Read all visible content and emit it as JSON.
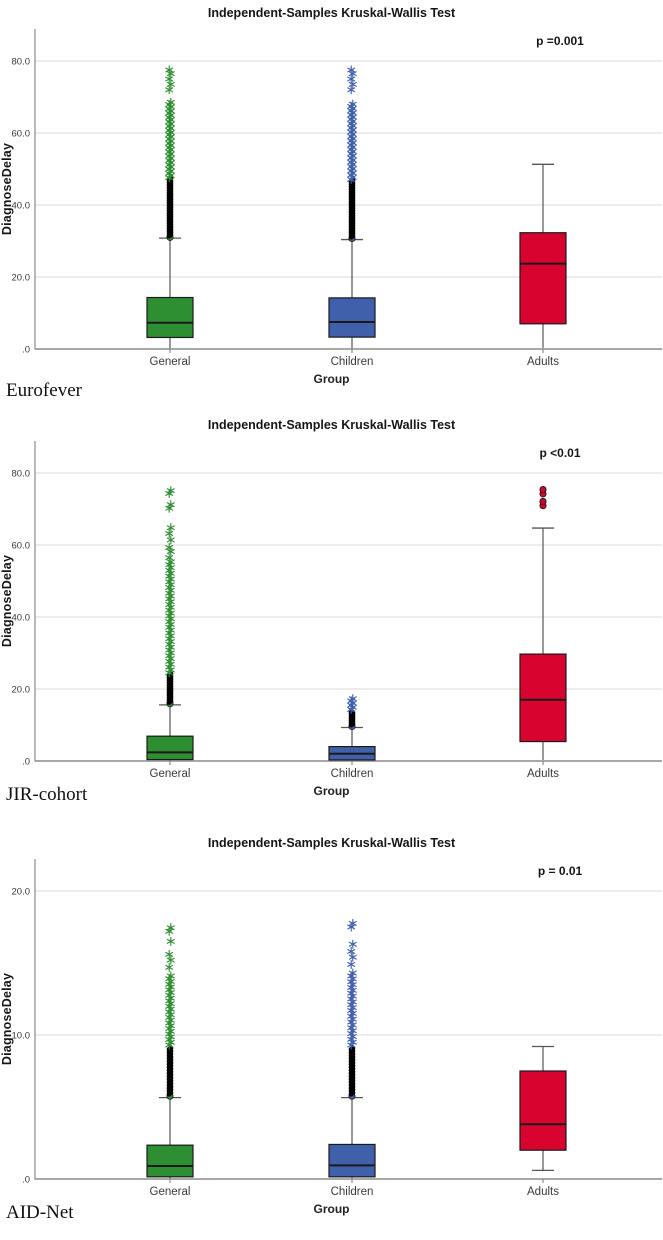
{
  "chart_data": [
    {
      "type": "boxplot",
      "cohort": "Eurofever",
      "title": "Independent-Samples Kruskal-Wallis Test",
      "p_label": "p =0.001",
      "xlabel": "Group",
      "ylabel": "DiagnoseDelay",
      "legend": "none",
      "grid": "horizontal",
      "y_ticks": [
        {
          "value": 0,
          "label": ".0"
        },
        {
          "value": 20,
          "label": "20.0"
        },
        {
          "value": 40,
          "label": "40.0"
        },
        {
          "value": 60,
          "label": "60.0"
        },
        {
          "value": 80,
          "label": "80.0"
        }
      ],
      "groups": [
        {
          "name": "General",
          "fill": "#2e8f32",
          "stats": {
            "whisker_low": 0.2,
            "q1": 3.2,
            "median": 7.3,
            "q3": 14.3,
            "whisker_high": 30.8
          },
          "outliers": [
            {
              "marker": "circle",
              "color": "#2e8f32",
              "values": [
                31.0
              ]
            },
            {
              "marker": "circle",
              "color": "#000000",
              "min": 31.4,
              "max": 47.3,
              "count": 46
            },
            {
              "marker": "asterisk",
              "color": "#2e8f32",
              "min": 47.6,
              "max": 68.5,
              "count": 36
            },
            {
              "marker": "asterisk",
              "color": "#2e8f32",
              "values": [
                72.0,
                73.5,
                75.0,
                76.5,
                77.5
              ]
            }
          ]
        },
        {
          "name": "Children",
          "fill": "#4060ac",
          "stats": {
            "whisker_low": 0.2,
            "q1": 3.3,
            "median": 7.5,
            "q3": 14.2,
            "whisker_high": 30.4
          },
          "outliers": [
            {
              "marker": "circle",
              "color": "#4060ac",
              "values": [
                30.7
              ]
            },
            {
              "marker": "circle",
              "color": "#000000",
              "min": 31.1,
              "max": 46.8,
              "count": 46
            },
            {
              "marker": "asterisk",
              "color": "#4060ac",
              "min": 47.1,
              "max": 68.0,
              "count": 36
            },
            {
              "marker": "asterisk",
              "color": "#4060ac",
              "values": [
                72.0,
                73.5,
                75.0,
                76.5,
                77.5
              ]
            }
          ]
        },
        {
          "name": "Adults",
          "fill": "#d8042f",
          "stats": {
            "whisker_low": 0.3,
            "q1": 7.0,
            "median": 23.7,
            "q3": 32.3,
            "whisker_high": 51.3
          },
          "outliers": []
        }
      ]
    },
    {
      "type": "boxplot",
      "cohort": "JIR-cohort",
      "title": "Independent-Samples Kruskal-Wallis Test",
      "p_label": "p <0.01",
      "xlabel": "Group",
      "ylabel": "DiagnoseDelay",
      "legend": "none",
      "grid": "horizontal",
      "y_ticks": [
        {
          "value": 0,
          "label": ".0"
        },
        {
          "value": 20,
          "label": "20.0"
        },
        {
          "value": 40,
          "label": "40.0"
        },
        {
          "value": 60,
          "label": "60.0"
        },
        {
          "value": 80,
          "label": "80.0"
        }
      ],
      "groups": [
        {
          "name": "General",
          "fill": "#2e8f32",
          "stats": {
            "whisker_low": 0.1,
            "q1": 0.4,
            "median": 2.4,
            "q3": 6.9,
            "whisker_high": 15.6
          },
          "outliers": [
            {
              "marker": "circle",
              "color": "#2e8f32",
              "values": [
                15.9
              ]
            },
            {
              "marker": "circle",
              "color": "#000000",
              "min": 16.3,
              "max": 24.2,
              "count": 24
            },
            {
              "marker": "asterisk",
              "color": "#2e8f32",
              "min": 24.5,
              "max": 55.3,
              "count": 40
            },
            {
              "marker": "asterisk",
              "color": "#2e8f32",
              "values": [
                56.5,
                58.2,
                59.3,
                61.4,
                63.2,
                64.8,
                70.2,
                71.2,
                74.3,
                75.1
              ]
            }
          ]
        },
        {
          "name": "Children",
          "fill": "#4060ac",
          "stats": {
            "whisker_low": 0.1,
            "q1": 0.3,
            "median": 2.0,
            "q3": 4.0,
            "whisker_high": 9.3
          },
          "outliers": [
            {
              "marker": "circle",
              "color": "#4060ac",
              "values": [
                9.6
              ]
            },
            {
              "marker": "circle",
              "color": "#000000",
              "min": 10.0,
              "max": 13.8,
              "count": 13
            },
            {
              "marker": "asterisk",
              "color": "#4060ac",
              "values": [
                14.3,
                14.9,
                15.5,
                16.1,
                16.7,
                17.3
              ]
            }
          ]
        },
        {
          "name": "Adults",
          "fill": "#d8042f",
          "stats": {
            "whisker_low": 0.3,
            "q1": 5.4,
            "median": 17.0,
            "q3": 29.7,
            "whisker_high": 64.7
          },
          "outliers": [
            {
              "marker": "circle",
              "color": "#d8042f",
              "values": [
                70.9,
                72.1,
                74.2,
                75.4
              ]
            }
          ]
        }
      ]
    },
    {
      "type": "boxplot",
      "cohort": "AID-Net",
      "title": "Independent-Samples Kruskal-Wallis Test",
      "p_label": "p = 0.01",
      "xlabel": "Group",
      "ylabel": "DiagnoseDelay",
      "legend": "none",
      "grid": "horizontal",
      "y_ticks": [
        {
          "value": 0,
          "label": ".0"
        },
        {
          "value": 10,
          "label": "10.0"
        },
        {
          "value": 20,
          "label": "20.0"
        }
      ],
      "groups": [
        {
          "name": "General",
          "fill": "#2e8f32",
          "stats": {
            "whisker_low": 0.05,
            "q1": 0.15,
            "median": 0.9,
            "q3": 2.35,
            "whisker_high": 5.65
          },
          "outliers": [
            {
              "marker": "circle",
              "color": "#2e8f32",
              "values": [
                5.75
              ]
            },
            {
              "marker": "circle",
              "color": "#000000",
              "min": 5.9,
              "max": 9.1,
              "count": 32
            },
            {
              "marker": "asterisk",
              "color": "#2e8f32",
              "min": 9.3,
              "max": 14.1,
              "count": 26
            },
            {
              "marker": "asterisk",
              "color": "#2e8f32",
              "values": [
                14.7,
                15.2,
                15.6,
                16.5,
                17.2,
                17.45
              ]
            }
          ]
        },
        {
          "name": "Children",
          "fill": "#4060ac",
          "stats": {
            "whisker_low": 0.05,
            "q1": 0.15,
            "median": 0.95,
            "q3": 2.4,
            "whisker_high": 5.65
          },
          "outliers": [
            {
              "marker": "circle",
              "color": "#4060ac",
              "values": [
                5.75
              ]
            },
            {
              "marker": "circle",
              "color": "#000000",
              "min": 5.9,
              "max": 9.1,
              "count": 32
            },
            {
              "marker": "asterisk",
              "color": "#4060ac",
              "min": 9.3,
              "max": 14.3,
              "count": 26
            },
            {
              "marker": "asterisk",
              "color": "#4060ac",
              "values": [
                14.9,
                15.4,
                15.8,
                16.3,
                17.5,
                17.75
              ]
            }
          ]
        },
        {
          "name": "Adults",
          "fill": "#d8042f",
          "stats": {
            "whisker_low": 0.6,
            "q1": 2.0,
            "median": 3.8,
            "q3": 7.5,
            "whisker_high": 9.2
          },
          "outliers": []
        }
      ]
    }
  ],
  "style": {
    "grid_color": "#d9d9d9",
    "axis_color": "#8c8c8c",
    "tick_text_color": "#3a3a3a",
    "box_border_color": "#1a1a1a",
    "whisker_color": "#555555",
    "title_color": "#161616"
  }
}
